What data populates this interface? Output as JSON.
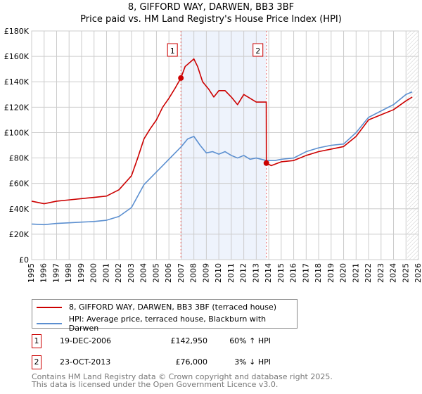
{
  "title": "8, GIFFORD WAY, DARWEN, BB3 3BF",
  "subtitle": "Price paid vs. HM Land Registry's House Price Index (HPI)",
  "chart_data": {
    "type": "line",
    "title": "8, GIFFORD WAY, DARWEN, BB3 3BF — Price paid vs. HM Land Registry's House Price Index (HPI)",
    "xlim": [
      1995,
      2026
    ],
    "ylim": [
      0,
      180000
    ],
    "x_ticks": [
      1995,
      1996,
      1997,
      1998,
      1999,
      2000,
      2001,
      2002,
      2003,
      2004,
      2005,
      2006,
      2007,
      2008,
      2009,
      2010,
      2011,
      2012,
      2013,
      2014,
      2015,
      2016,
      2017,
      2018,
      2019,
      2020,
      2021,
      2022,
      2023,
      2024,
      2025,
      2026
    ],
    "y_ticks": [
      {
        "v": 0,
        "l": "£0"
      },
      {
        "v": 20000,
        "l": "£20K"
      },
      {
        "v": 40000,
        "l": "£40K"
      },
      {
        "v": 60000,
        "l": "£60K"
      },
      {
        "v": 80000,
        "l": "£80K"
      },
      {
        "v": 100000,
        "l": "£100K"
      },
      {
        "v": 120000,
        "l": "£120K"
      },
      {
        "v": 140000,
        "l": "£140K"
      },
      {
        "v": 160000,
        "l": "£160K"
      },
      {
        "v": 180000,
        "l": "£180K"
      }
    ],
    "grid": true,
    "series": [
      {
        "name": "8, GIFFORD WAY, DARWEN, BB3 3BF (terraced house)",
        "color": "#cc0000",
        "x": [
          1995,
          1996,
          1997,
          1998,
          1999,
          2000,
          2001,
          2002,
          2003,
          2003.5,
          2004,
          2004.5,
          2005,
          2005.5,
          2006,
          2006.5,
          2006.96,
          2007.3,
          2008,
          2008.3,
          2008.7,
          2009.2,
          2009.6,
          2010,
          2010.5,
          2011,
          2011.5,
          2012,
          2012.5,
          2013,
          2013.8,
          2013.81,
          2014.2,
          2015,
          2016,
          2017,
          2018,
          2019,
          2020,
          2021,
          2022,
          2023,
          2024,
          2025,
          2025.5
        ],
        "y": [
          46000,
          44000,
          46000,
          47000,
          48000,
          49000,
          50000,
          55000,
          66000,
          80000,
          95000,
          103000,
          110000,
          120000,
          127000,
          135000,
          142950,
          152000,
          158000,
          152000,
          140000,
          134000,
          128000,
          133000,
          133000,
          128000,
          122000,
          130000,
          127000,
          124000,
          124000,
          76000,
          74000,
          77000,
          78000,
          82000,
          85000,
          87000,
          89000,
          97000,
          110000,
          114000,
          118000,
          125000,
          128000
        ]
      },
      {
        "name": "HPI: Average price, terraced house, Blackburn with Darwen",
        "color": "#5b8fd0",
        "x": [
          1995,
          1996,
          1997,
          1998,
          1999,
          2000,
          2001,
          2002,
          2003,
          2003.5,
          2004,
          2004.5,
          2005,
          2005.5,
          2006,
          2006.5,
          2007,
          2007.5,
          2008,
          2008.5,
          2009,
          2009.5,
          2010,
          2010.5,
          2011,
          2011.5,
          2012,
          2012.5,
          2013,
          2013.8,
          2014.5,
          2015,
          2016,
          2017,
          2018,
          2019,
          2020,
          2021,
          2022,
          2023,
          2024,
          2025,
          2025.5
        ],
        "y": [
          28000,
          27500,
          28500,
          29000,
          29500,
          30000,
          31000,
          34000,
          41000,
          50000,
          59000,
          64000,
          69000,
          74000,
          79000,
          84000,
          89000,
          95000,
          97000,
          90000,
          84000,
          85000,
          83000,
          85000,
          82000,
          80000,
          82000,
          79000,
          80000,
          78000,
          78000,
          79000,
          80000,
          85000,
          88000,
          90000,
          91000,
          100000,
          112000,
          117000,
          122000,
          130000,
          132000
        ]
      }
    ],
    "sales": [
      {
        "label": "1",
        "x": 2006.96,
        "y": 142950,
        "date": "19-DEC-2006",
        "price": "£142,950",
        "hpi": "60% ↑ HPI"
      },
      {
        "label": "2",
        "x": 2013.81,
        "y": 76000,
        "date": "23-OCT-2013",
        "price": "£76,000",
        "hpi": "3% ↓ HPI"
      }
    ],
    "forecast_from": 2025.1,
    "legend": "bottom"
  },
  "footer": [
    "Contains HM Land Registry data © Crown copyright and database right 2025.",
    "This data is licensed under the Open Government Licence v3.0."
  ]
}
